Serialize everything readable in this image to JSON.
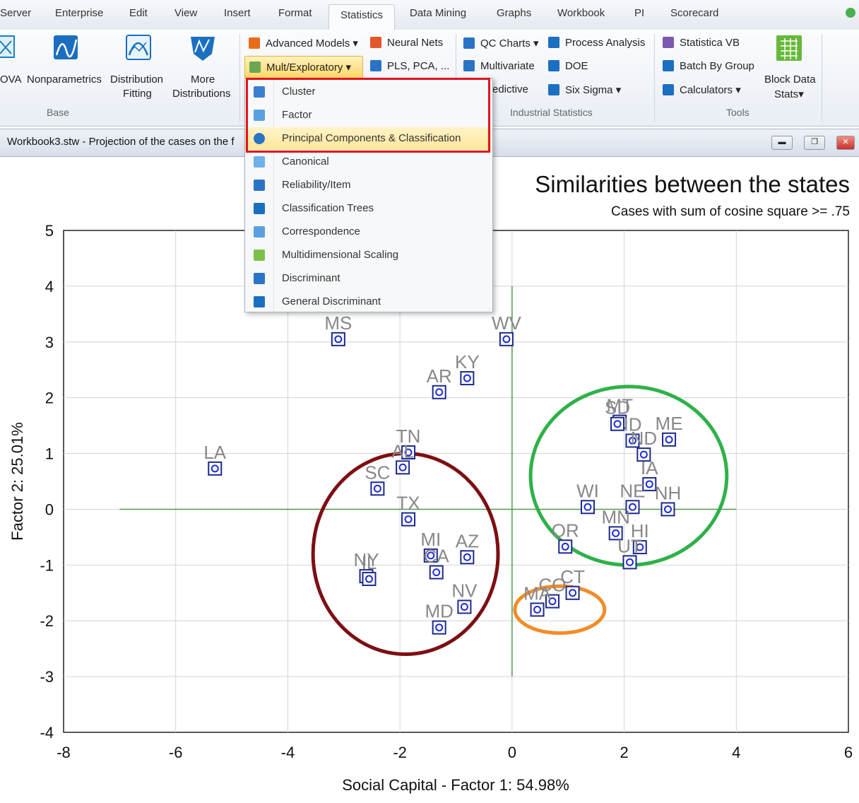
{
  "tabs": [
    "Server",
    "Enterprise",
    "Edit",
    "View",
    "Insert",
    "Format",
    "Statistics",
    "Data Mining",
    "Graphs",
    "Workbook",
    "PI",
    "Scorecard"
  ],
  "ribbon": {
    "base": {
      "anova_label": "OVA",
      "nonparametrics_label": "Nonparametrics",
      "distribution_label_1": "Distribution",
      "distribution_label_2": "Fitting",
      "more_label_1": "More",
      "more_label_2": "Distributions",
      "group_label": "Base"
    },
    "advanced_models": "Advanced Models",
    "mult_exploratory": "Mult/Exploratory",
    "neural_nets": "Neural Nets",
    "pls_pca": "PLS, PCA, ...",
    "qc_charts": "QC Charts",
    "process_analysis": "Process Analysis",
    "multivariate": "Multivariate",
    "doe": "DOE",
    "predictive": "edictive",
    "six_sigma": "Six Sigma",
    "industrial_label": "Industrial Statistics",
    "statistica_vb": "Statistica VB",
    "batch_by_group": "Batch By Group",
    "calculators": "Calculators",
    "block_data_1": "Block Data",
    "block_data_2": "Stats",
    "tools_label": "Tools"
  },
  "window": {
    "title": "Workbook3.stw - Projection of the cases on the f"
  },
  "menu": {
    "items": [
      "Cluster",
      "Factor",
      "Principal Components & Classification",
      "Canonical",
      "Reliability/Item",
      "Classification Trees",
      "Correspondence",
      "Multidimensional Scaling",
      "Discriminant",
      "General Discriminant"
    ],
    "selected_index": 2
  },
  "colors": {
    "accent_red": "#e0141c",
    "marker_blue": "#1f2bd6",
    "axis_green": "#4c9a4c"
  },
  "chart_data": {
    "type": "scatter",
    "title": "Similarities between the states",
    "subtitle": "Cases with sum of cosine square >=  .75",
    "xlabel": "Social Capital - Factor 1: 54.98%",
    "ylabel": "Factor 2: 25.01%",
    "xlim": [
      -8,
      6
    ],
    "ylim": [
      -4,
      5
    ],
    "xticks": [
      -8,
      -6,
      -4,
      -2,
      0,
      2,
      4,
      6
    ],
    "yticks": [
      -4,
      -3,
      -2,
      -1,
      0,
      1,
      2,
      3,
      4,
      5
    ],
    "grid": true,
    "points": [
      {
        "label": "MS",
        "x": -3.1,
        "y": 3.05
      },
      {
        "label": "WV",
        "x": -0.1,
        "y": 3.05
      },
      {
        "label": "KY",
        "x": -0.8,
        "y": 2.35
      },
      {
        "label": "AR",
        "x": -1.3,
        "y": 2.1
      },
      {
        "label": "LA",
        "x": -5.3,
        "y": 0.73
      },
      {
        "label": "TN",
        "x": -1.85,
        "y": 1.02
      },
      {
        "label": "AL",
        "x": -1.95,
        "y": 0.75
      },
      {
        "label": "SC",
        "x": -2.4,
        "y": 0.37
      },
      {
        "label": "TX",
        "x": -1.85,
        "y": -0.18
      },
      {
        "label": "MI",
        "x": -1.45,
        "y": -0.83
      },
      {
        "label": "AZ",
        "x": -0.8,
        "y": -0.86
      },
      {
        "label": "CA",
        "x": -1.35,
        "y": -1.13
      },
      {
        "label": "NY",
        "x": -2.6,
        "y": -1.2
      },
      {
        "label": "IL",
        "x": -2.55,
        "y": -1.25
      },
      {
        "label": "NV",
        "x": -0.85,
        "y": -1.75
      },
      {
        "label": "MD",
        "x": -1.3,
        "y": -2.12
      },
      {
        "label": "MT",
        "x": 1.92,
        "y": 1.57
      },
      {
        "label": "SD",
        "x": 1.88,
        "y": 1.53
      },
      {
        "label": "ID",
        "x": 2.15,
        "y": 1.23
      },
      {
        "label": "ME",
        "x": 2.8,
        "y": 1.25
      },
      {
        "label": "ND",
        "x": 2.35,
        "y": 0.98
      },
      {
        "label": "IA",
        "x": 2.45,
        "y": 0.45
      },
      {
        "label": "WI",
        "x": 1.35,
        "y": 0.04
      },
      {
        "label": "NE",
        "x": 2.15,
        "y": 0.04
      },
      {
        "label": "NH",
        "x": 2.78,
        "y": 0.0
      },
      {
        "label": "OR",
        "x": 0.95,
        "y": -0.67
      },
      {
        "label": "MN",
        "x": 1.85,
        "y": -0.43
      },
      {
        "label": "HI",
        "x": 2.28,
        "y": -0.68
      },
      {
        "label": "UT",
        "x": 2.1,
        "y": -0.95
      },
      {
        "label": "CT",
        "x": 1.08,
        "y": -1.5
      },
      {
        "label": "CO",
        "x": 0.72,
        "y": -1.65
      },
      {
        "label": "MA",
        "x": 0.45,
        "y": -1.8
      }
    ],
    "clusters": [
      {
        "color": "#7d0f14",
        "cx": -1.9,
        "cy": -0.8,
        "rx": 1.65,
        "ry": 1.8
      },
      {
        "color": "#2fb14a",
        "cx": 2.08,
        "cy": 0.6,
        "rx": 1.75,
        "ry": 1.6
      },
      {
        "color": "#f28c28",
        "cx": 0.85,
        "cy": -1.8,
        "rx": 0.8,
        "ry": 0.42
      }
    ]
  }
}
